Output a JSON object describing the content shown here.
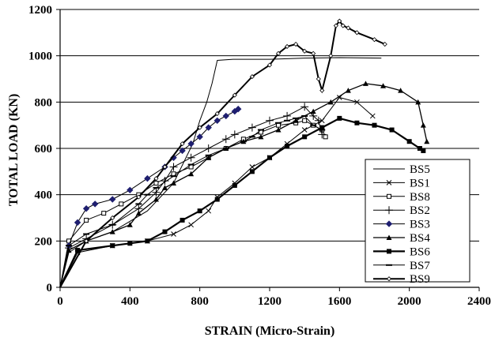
{
  "chart_data": {
    "type": "line",
    "title": "",
    "xlabel": "STRAIN (Micro-Strain)",
    "ylabel": "TOTAL LOAD (KN)",
    "xlim": [
      0,
      2400
    ],
    "ylim": [
      0,
      1200
    ],
    "x_ticks": [
      0,
      400,
      800,
      1200,
      1600,
      2000,
      2400
    ],
    "y_ticks": [
      0,
      200,
      400,
      600,
      800,
      1000,
      1200
    ],
    "x_tick_labels": [
      "0",
      "400",
      "800",
      "1200",
      "1600",
      "2000",
      "2400"
    ],
    "y_tick_labels": [
      "0",
      "200",
      "400",
      "600",
      "800",
      "1000",
      "1200"
    ],
    "grid": "horizontal",
    "legend_position": "bottom-right",
    "series": [
      {
        "name": "BS5",
        "marker": "none",
        "x": [
          0,
          50,
          150,
          300,
          500,
          650,
          760,
          800,
          840,
          870,
          900,
          990,
          1200,
          1400,
          1600,
          1840
        ],
        "y": [
          0,
          150,
          200,
          240,
          330,
          450,
          620,
          720,
          800,
          880,
          980,
          985,
          985,
          990,
          992,
          990
        ]
      },
      {
        "name": "BS1",
        "marker": "x",
        "x": [
          0,
          100,
          300,
          500,
          650,
          750,
          850,
          900,
          1000,
          1100,
          1200,
          1300,
          1400,
          1500,
          1600,
          1700,
          1790
        ],
        "y": [
          0,
          150,
          180,
          200,
          230,
          270,
          330,
          390,
          450,
          520,
          560,
          620,
          680,
          720,
          820,
          800,
          740
        ]
      },
      {
        "name": "BS8",
        "marker": "square",
        "x": [
          0,
          50,
          150,
          250,
          350,
          450,
          550,
          650,
          750,
          850,
          950,
          1050,
          1150,
          1250,
          1350,
          1400,
          1450,
          1500,
          1520
        ],
        "y": [
          0,
          200,
          290,
          320,
          360,
          400,
          450,
          490,
          520,
          560,
          600,
          640,
          670,
          700,
          710,
          720,
          700,
          680,
          650
        ]
      },
      {
        "name": "BS2",
        "marker": "plus",
        "x": [
          0,
          50,
          150,
          300,
          450,
          550,
          600,
          650,
          750,
          850,
          950,
          1000,
          1100,
          1200,
          1300,
          1400,
          1450,
          1480,
          1500
        ],
        "y": [
          0,
          170,
          210,
          270,
          340,
          410,
          460,
          520,
          560,
          600,
          640,
          660,
          690,
          720,
          740,
          780,
          740,
          720,
          660
        ]
      },
      {
        "name": "BS3",
        "marker": "diamond",
        "x": [
          0,
          50,
          100,
          150,
          200,
          300,
          400,
          500,
          600,
          650,
          700,
          750,
          800,
          850,
          900,
          950,
          1000,
          1020
        ],
        "y": [
          0,
          180,
          280,
          340,
          360,
          380,
          420,
          470,
          520,
          560,
          590,
          620,
          650,
          690,
          720,
          740,
          760,
          770
        ]
      },
      {
        "name": "BS4",
        "marker": "triangle",
        "x": [
          0,
          50,
          150,
          300,
          400,
          450,
          550,
          600,
          650,
          750,
          850,
          950,
          1050,
          1150,
          1250,
          1350,
          1450,
          1550,
          1650,
          1750,
          1850,
          1950,
          2050,
          2080,
          2100
        ],
        "y": [
          0,
          160,
          200,
          240,
          270,
          320,
          380,
          430,
          450,
          490,
          560,
          600,
          630,
          650,
          680,
          720,
          760,
          800,
          850,
          880,
          870,
          850,
          800,
          700,
          630
        ]
      },
      {
        "name": "BS6",
        "marker": "filled-square",
        "x": [
          0,
          100,
          300,
          400,
          500,
          600,
          700,
          800,
          900,
          1000,
          1100,
          1200,
          1300,
          1400,
          1500,
          1600,
          1700,
          1800,
          1900,
          2000,
          2060,
          2080
        ],
        "y": [
          0,
          160,
          180,
          190,
          200,
          240,
          290,
          330,
          380,
          440,
          500,
          560,
          610,
          650,
          690,
          730,
          710,
          700,
          680,
          630,
          600,
          590
        ]
      },
      {
        "name": "BS7",
        "marker": "dash",
        "x": [
          0,
          50,
          150,
          300,
          450,
          500,
          550,
          650,
          750,
          850,
          950,
          1050,
          1100,
          1150,
          1250,
          1300,
          1350,
          1400,
          1450,
          1500
        ],
        "y": [
          0,
          180,
          230,
          270,
          360,
          400,
          430,
          480,
          530,
          570,
          600,
          630,
          650,
          680,
          710,
          720,
          730,
          740,
          700,
          680
        ]
      },
      {
        "name": "BS9",
        "marker": "small-diamond",
        "x": [
          0,
          150,
          300,
          450,
          550,
          600,
          700,
          800,
          900,
          1000,
          1100,
          1200,
          1250,
          1300,
          1350,
          1400,
          1450,
          1480,
          1500,
          1550,
          1580,
          1600,
          1620,
          1650,
          1700,
          1800,
          1860
        ],
        "y": [
          0,
          200,
          300,
          390,
          470,
          520,
          620,
          690,
          750,
          830,
          910,
          960,
          1010,
          1040,
          1050,
          1020,
          1010,
          900,
          850,
          1000,
          1130,
          1150,
          1130,
          1120,
          1100,
          1070,
          1050
        ]
      }
    ]
  }
}
